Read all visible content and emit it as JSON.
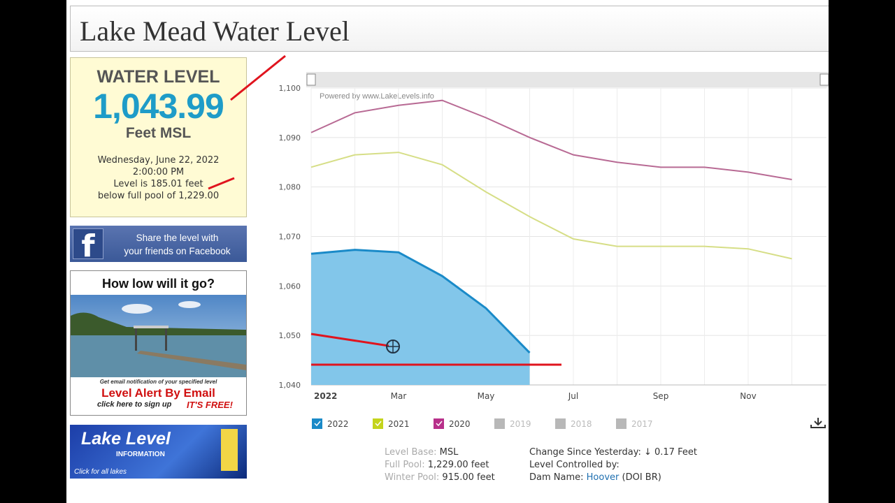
{
  "header": {
    "title": "Lake Mead Water Level"
  },
  "level_box": {
    "heading": "WATER LEVEL",
    "value": "1,043.99",
    "unit": "Feet MSL",
    "date": "Wednesday, June 22, 2022",
    "time": "2:00:00 PM",
    "line1": "Level is 185.01 feet",
    "line2": "below full pool of 1,229.00"
  },
  "facebook": {
    "line1": "Share the level with",
    "line2": "your friends on Facebook"
  },
  "alert": {
    "heading": "How low will it go?",
    "note": "Get email notification of your specified level",
    "title": "Level Alert By Email",
    "signup": "click here to sign up",
    "free": "IT'S FREE!"
  },
  "lakes": {
    "title": "Lake Level",
    "subtitle": "INFORMATION",
    "link": "Click for all lakes"
  },
  "chart_data": {
    "type": "line",
    "annotation": "Powered by www.LakeLevels.info",
    "categories": [
      "2022",
      null,
      "Mar",
      null,
      "May",
      null,
      "Jul",
      null,
      "Sep",
      null,
      "Nov",
      null
    ],
    "series": [
      {
        "name": "2022",
        "color": "#1a8ac8",
        "fill": "#82c6ea",
        "values": [
          1066.5,
          1067.3,
          1066.8,
          1062,
          1055.5,
          1046.5,
          null,
          null,
          null,
          null,
          null,
          null
        ]
      },
      {
        "name": "2021",
        "color": "#d6de86",
        "values": [
          1084,
          1086.5,
          1087,
          1084.5,
          1079,
          1074,
          1069.5,
          1068,
          1068,
          1068,
          1067.5,
          1065.5
        ]
      },
      {
        "name": "2020",
        "color": "#b86a94",
        "values": [
          1091,
          1095,
          1096.5,
          1097.5,
          1094,
          1090,
          1086.5,
          1085,
          1084,
          1084,
          1083,
          1081.5
        ]
      }
    ],
    "legend_inactive": [
      "2019",
      "2018",
      "2017"
    ],
    "ylim": [
      1040,
      1100
    ],
    "yticks": [
      {
        "value": 1040,
        "label": "1,040"
      },
      {
        "value": 1050,
        "label": "1,050"
      },
      {
        "value": 1060,
        "label": "1,060"
      },
      {
        "value": 1070,
        "label": "1,070"
      },
      {
        "value": 1080,
        "label": "1,080"
      },
      {
        "value": 1090,
        "label": "1,090"
      },
      {
        "value": 1100,
        "label": "1,100"
      }
    ],
    "grid": true
  },
  "details": {
    "left": [
      {
        "label": "Level Base:",
        "value": "MSL"
      },
      {
        "label": "Full Pool:",
        "value": "1,229.00 feet"
      },
      {
        "label": "Winter Pool:",
        "value": "915.00 feet"
      }
    ],
    "right": [
      {
        "label": "Change Since Yesterday:",
        "value": "↓ 0.17 Feet"
      },
      {
        "label": "Level Controlled by:"
      },
      {
        "label": "Dam Name:",
        "value": "Hoover",
        "extra": "(DOI BR)"
      }
    ]
  }
}
